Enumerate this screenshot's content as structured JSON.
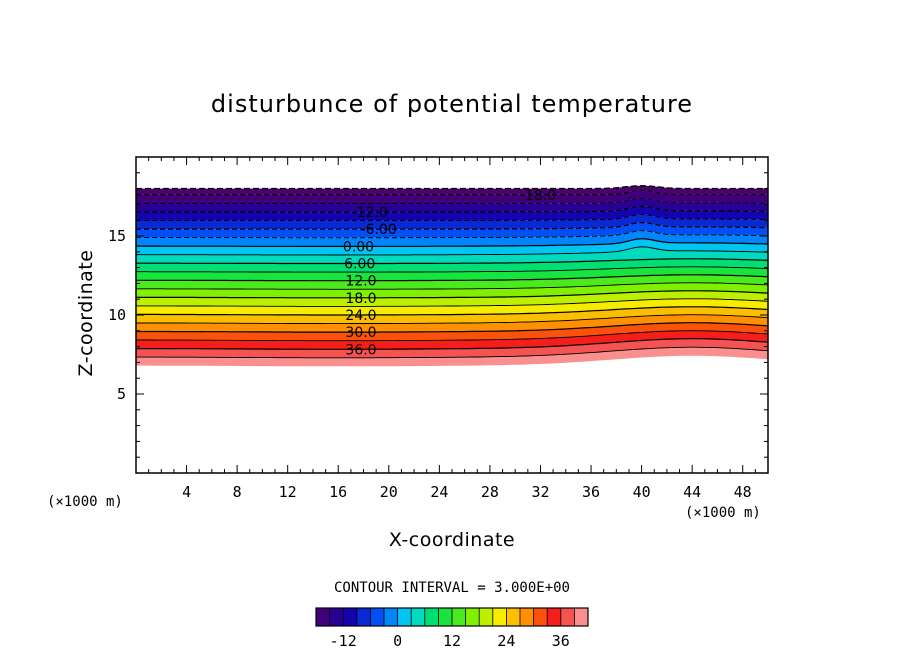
{
  "chart_data": {
    "type": "contour",
    "title": "disturbunce of potential temperature",
    "xlabel": "X-coordinate",
    "ylabel": "Z-coordinate",
    "x_unit": "(×1000 m)",
    "y_unit": "(×1000 m)",
    "xlim": [
      0,
      50
    ],
    "ylim": [
      0,
      20
    ],
    "x_ticks": [
      "4",
      "8",
      "12",
      "16",
      "20",
      "24",
      "28",
      "32",
      "36",
      "40",
      "44",
      "48"
    ],
    "y_ticks": [
      "5",
      "10",
      "15"
    ],
    "contour_interval_text": "CONTOUR INTERVAL = 3.000E+00",
    "contour_interval": 3,
    "value_range": [
      -18,
      39
    ],
    "contour_labels": [
      "-18.0",
      "-12.0",
      "-6.00",
      "0.00",
      "6.00",
      "12.0",
      "18.0",
      "24.0",
      "30.0",
      "36.0"
    ],
    "colorbar_ticks": [
      "-12",
      "0",
      "12",
      "24",
      "36"
    ],
    "colorbar_range": [
      -18,
      42
    ],
    "colormap": "rainbow (purple → blue → cyan → green → yellow → orange → red → pink)"
  }
}
